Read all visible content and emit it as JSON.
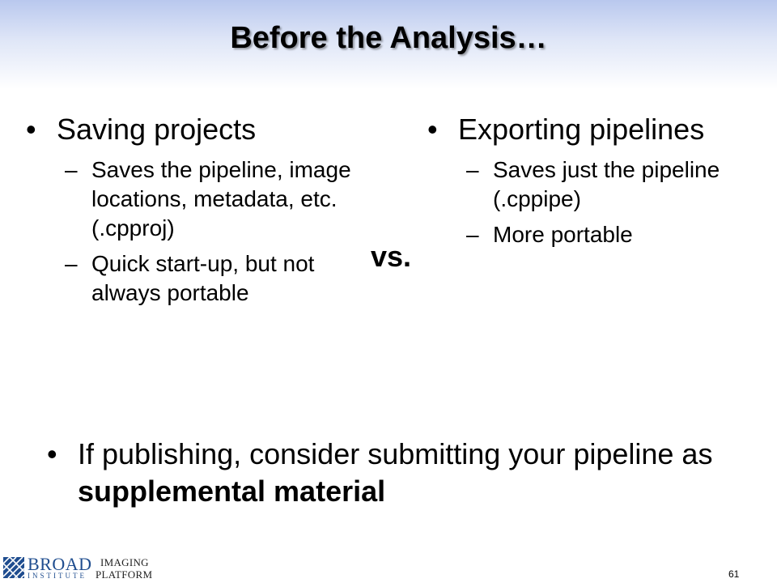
{
  "slide": {
    "title": "Before the Analysis…",
    "left": {
      "heading": "Saving projects",
      "points": [
        "Saves the pipeline, image locations, metadata, etc. (.cpproj)",
        "Quick start-up, but not always portable"
      ]
    },
    "vs": "vs.",
    "right": {
      "heading": "Exporting pipelines",
      "points": [
        "Saves just the pipeline (.cppipe)",
        "More portable"
      ]
    },
    "bottom": {
      "text": "If publishing, consider submitting your pipeline as ",
      "emphasis": "supplemental material"
    },
    "bullet_symbol": "•",
    "dash_symbol": "–",
    "page_number": "61"
  },
  "footer": {
    "logo_primary": "BROAD",
    "logo_secondary": "INSTITUTE",
    "logo_tertiary_1": "IMAGING",
    "logo_tertiary_2": "PLATFORM",
    "logo_color": "#1f4d8f"
  }
}
